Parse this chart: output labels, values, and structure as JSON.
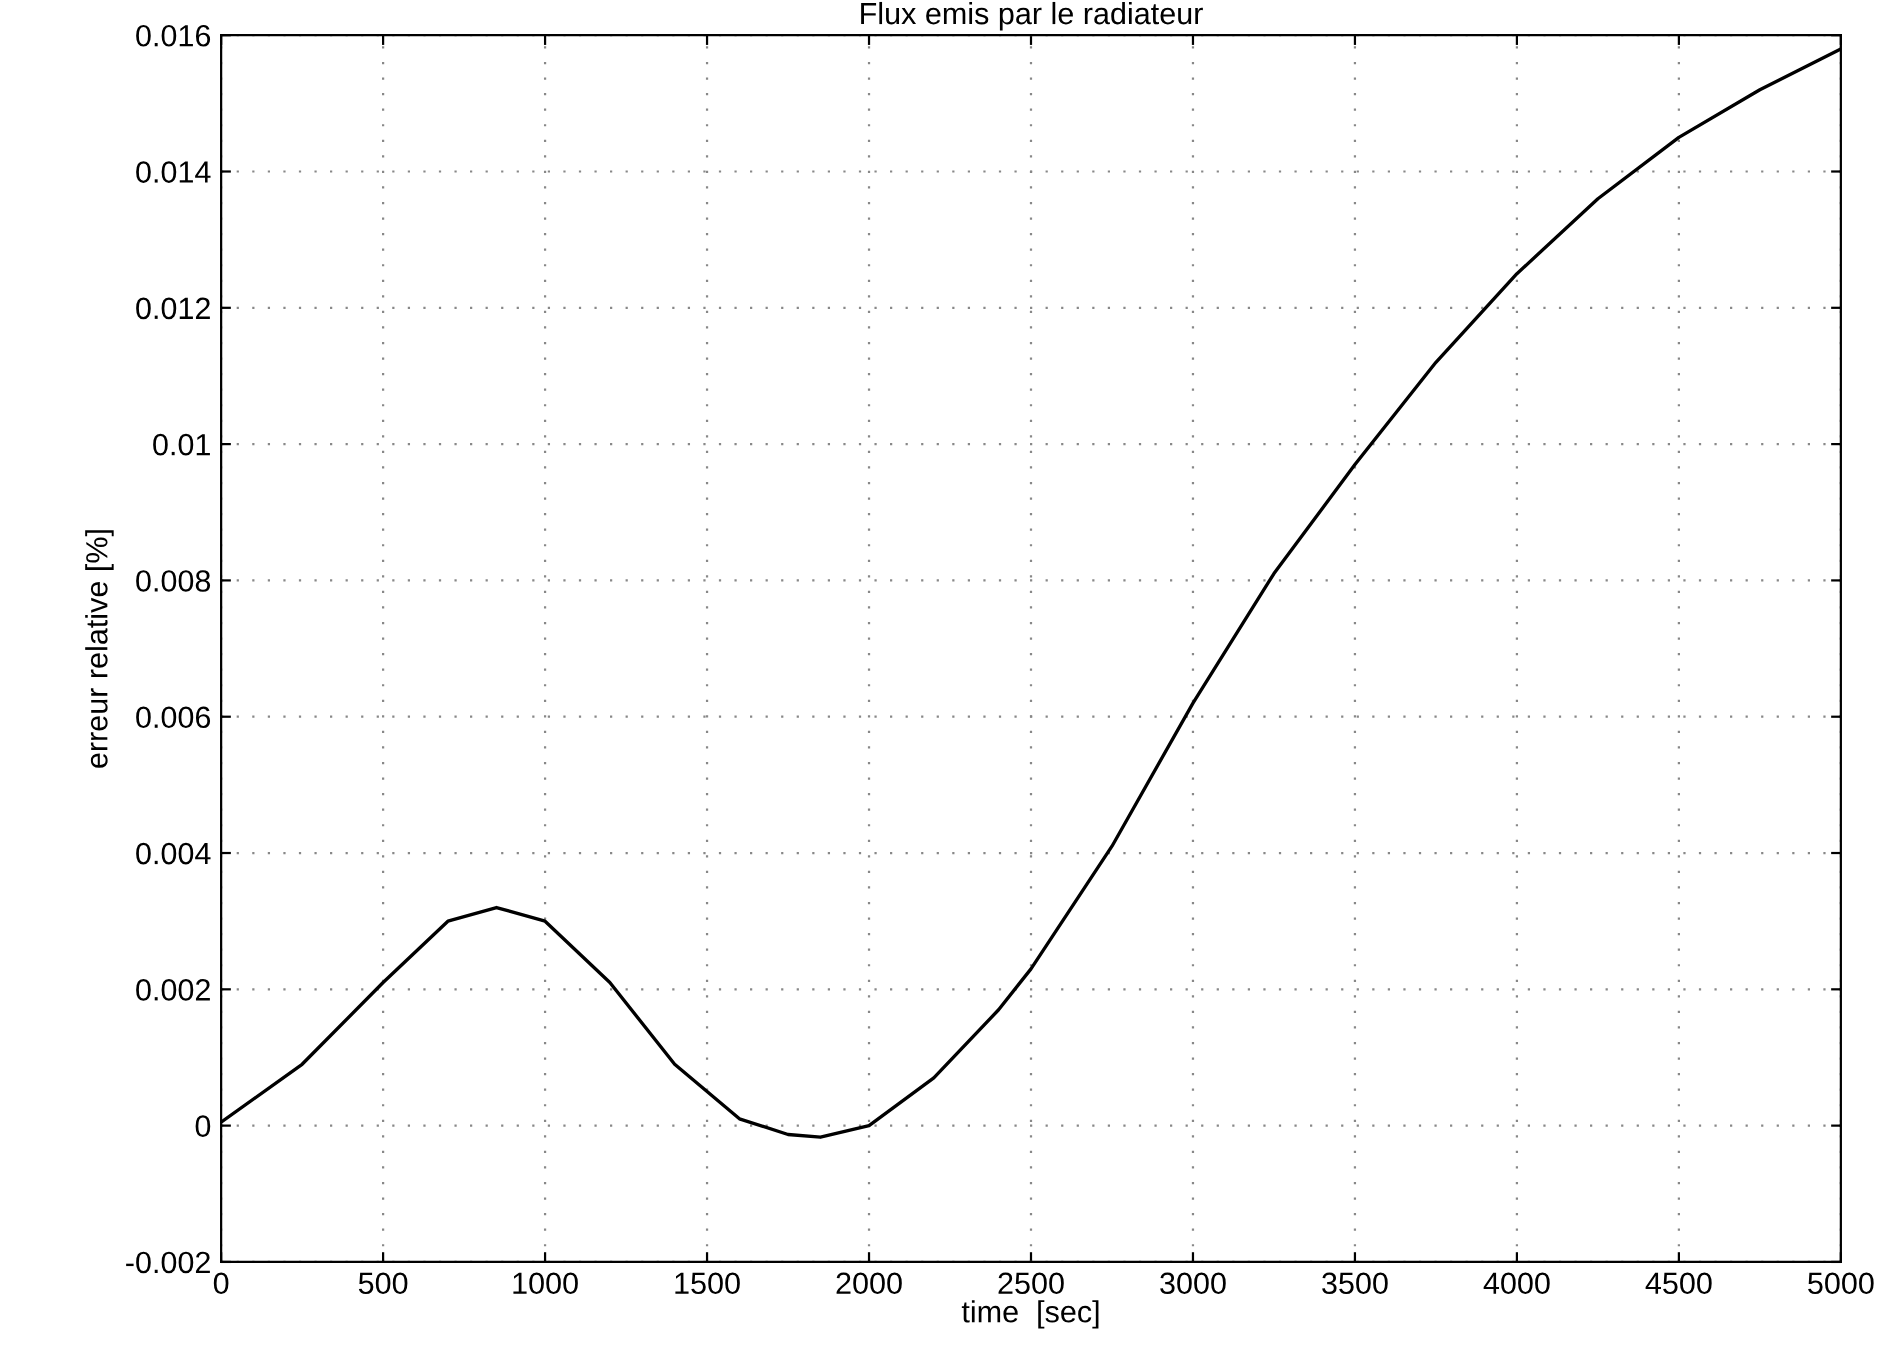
{
  "chart_data": {
    "type": "line",
    "title": "Flux emis par le radiateur",
    "xlabel": "time  [sec]",
    "ylabel": "erreur relative [%]",
    "x": [
      0,
      250,
      500,
      700,
      850,
      1000,
      1200,
      1400,
      1600,
      1750,
      1850,
      2000,
      2200,
      2400,
      2500,
      2750,
      3000,
      3250,
      3500,
      3750,
      4000,
      4250,
      4500,
      4750,
      5000
    ],
    "series": [
      {
        "color": "#000000",
        "values": [
          5e-05,
          0.0009,
          0.0021,
          0.003,
          0.0032,
          0.003,
          0.0021,
          0.0009,
          0.0001,
          -0.00013,
          -0.00017,
          0.0,
          0.0007,
          0.0017,
          0.0023,
          0.0041,
          0.0062,
          0.0081,
          0.0097,
          0.0112,
          0.0125,
          0.0136,
          0.0145,
          0.0152,
          0.0158
        ]
      }
    ],
    "xlim": [
      0,
      5000
    ],
    "xticks": [
      0,
      500,
      1000,
      1500,
      2000,
      2500,
      3000,
      3500,
      4000,
      4500,
      5000
    ],
    "ylim": [
      -0.002,
      0.016
    ],
    "yticks": [
      -0.002,
      0,
      0.002,
      0.004,
      0.006,
      0.008,
      0.01,
      0.012,
      0.014,
      0.016
    ],
    "grid": true,
    "marker": "none",
    "line_style": "solid",
    "legend": false
  }
}
